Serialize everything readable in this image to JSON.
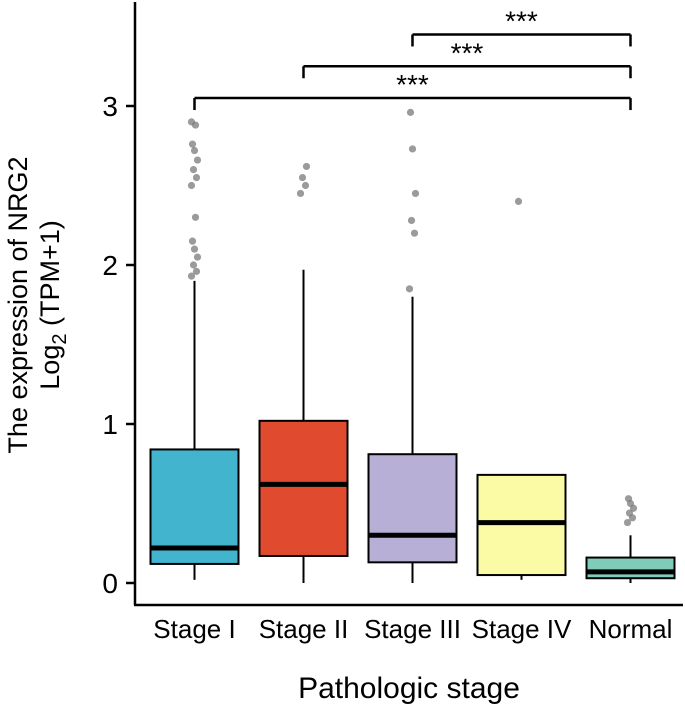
{
  "chart_data": {
    "type": "boxplot",
    "title": "",
    "xlabel": "Pathologic stage",
    "ylabel_line1": "The expression of NRG2",
    "ylabel_line2_prefix": "Log",
    "ylabel_line2_sub": "2",
    "ylabel_line2_suffix": " (TPM+1)",
    "ylim": [
      0,
      3.65
    ],
    "yticks": [
      0,
      1,
      2,
      3
    ],
    "grid": false,
    "legend": "none",
    "categories": [
      "Stage I",
      "Stage II",
      "Stage III",
      "Stage IV",
      "Normal"
    ],
    "series": [
      {
        "category": "Stage I",
        "color": "#43B4CE",
        "whisker_low": 0.02,
        "q1": 0.12,
        "median": 0.22,
        "q3": 0.84,
        "whisker_high": 1.9,
        "outliers": [
          1.93,
          1.96,
          2.0,
          2.05,
          2.1,
          2.15,
          2.3,
          2.5,
          2.55,
          2.6,
          2.66,
          2.72,
          2.76,
          2.88,
          2.9
        ]
      },
      {
        "category": "Stage II",
        "color": "#E04B2F",
        "whisker_low": 0.0,
        "q1": 0.17,
        "median": 0.62,
        "q3": 1.02,
        "whisker_high": 1.97,
        "outliers": [
          2.45,
          2.5,
          2.55,
          2.62
        ]
      },
      {
        "category": "Stage III",
        "color": "#B7AFD6",
        "whisker_low": 0.0,
        "q1": 0.13,
        "median": 0.3,
        "q3": 0.81,
        "whisker_high": 1.8,
        "outliers": [
          1.85,
          2.2,
          2.28,
          2.45,
          2.73,
          2.96
        ]
      },
      {
        "category": "Stage IV",
        "color": "#FBFBA6",
        "whisker_low": 0.02,
        "q1": 0.05,
        "median": 0.38,
        "q3": 0.68,
        "whisker_high": 0.68,
        "outliers": [
          2.4
        ]
      },
      {
        "category": "Normal",
        "color": "#7FCCBB",
        "whisker_low": 0.0,
        "q1": 0.03,
        "median": 0.07,
        "q3": 0.16,
        "whisker_high": 0.3,
        "outliers": [
          0.38,
          0.41,
          0.44,
          0.47,
          0.5,
          0.53
        ]
      }
    ],
    "significance": [
      {
        "from": "Stage I",
        "to": "Normal",
        "label": "***",
        "y": 3.05
      },
      {
        "from": "Stage II",
        "to": "Normal",
        "label": "***",
        "y": 3.25
      },
      {
        "from": "Stage III",
        "to": "Normal",
        "label": "***",
        "y": 3.45
      }
    ],
    "style": {
      "box_stroke": "#000000",
      "median_stroke": "#000000",
      "outlier_fill": "#7a7a7a",
      "bracket_stroke": "#000000"
    }
  }
}
